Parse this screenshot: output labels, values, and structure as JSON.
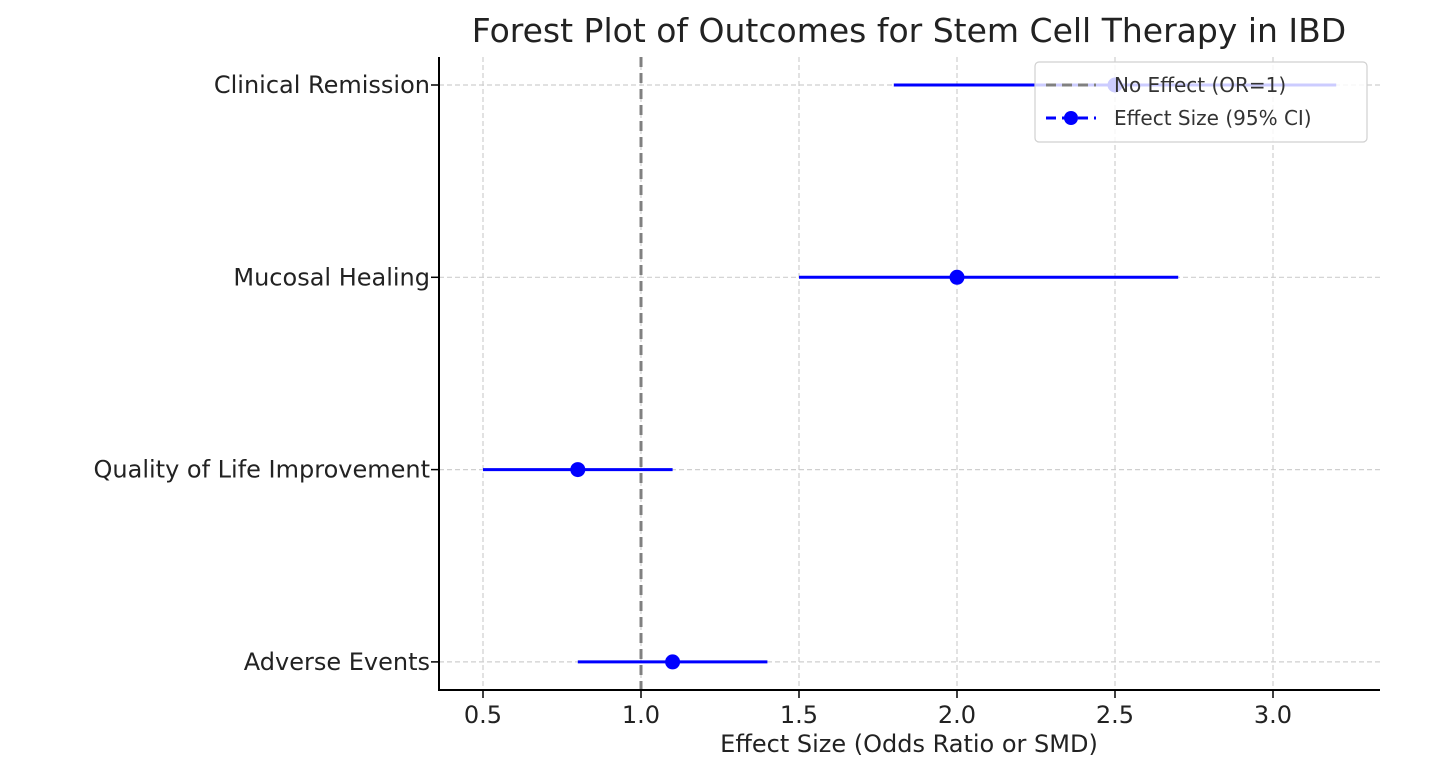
{
  "chart_data": {
    "type": "scatter",
    "subtype": "forest-plot",
    "title": "Forest Plot of Outcomes for Stem Cell Therapy in IBD",
    "xlabel": "Effect Size (Odds Ratio or SMD)",
    "ylabel": "",
    "xlim": [
      0.35,
      3.35
    ],
    "x_ticks": [
      0.5,
      1.0,
      1.5,
      2.0,
      2.5,
      3.0
    ],
    "x_tick_labels": [
      "0.5",
      "1.0",
      "1.5",
      "2.0",
      "2.5",
      "3.0"
    ],
    "grid": true,
    "categories": [
      "Clinical Remission",
      "Mucosal Healing",
      "Quality of Life Improvement",
      "Adverse Events"
    ],
    "series": [
      {
        "name": "Effect Size (95% CI)",
        "color": "#0000ff",
        "points": [
          {
            "label": "Clinical Remission",
            "estimate": 2.5,
            "ci_low": 1.8,
            "ci_high": 3.2
          },
          {
            "label": "Mucosal Healing",
            "estimate": 2.0,
            "ci_low": 1.5,
            "ci_high": 2.7
          },
          {
            "label": "Quality of Life Improvement",
            "estimate": 0.8,
            "ci_low": 0.5,
            "ci_high": 1.1
          },
          {
            "label": "Adverse Events",
            "estimate": 1.1,
            "ci_low": 0.8,
            "ci_high": 1.4
          }
        ]
      }
    ],
    "reference_line": {
      "x": 1.0,
      "name": "No Effect (OR=1)",
      "color": "#808080",
      "style": "dashed"
    },
    "legend": {
      "position": "top-right",
      "entries": [
        "No Effect (OR=1)",
        "Effect Size (95% CI)"
      ]
    }
  }
}
